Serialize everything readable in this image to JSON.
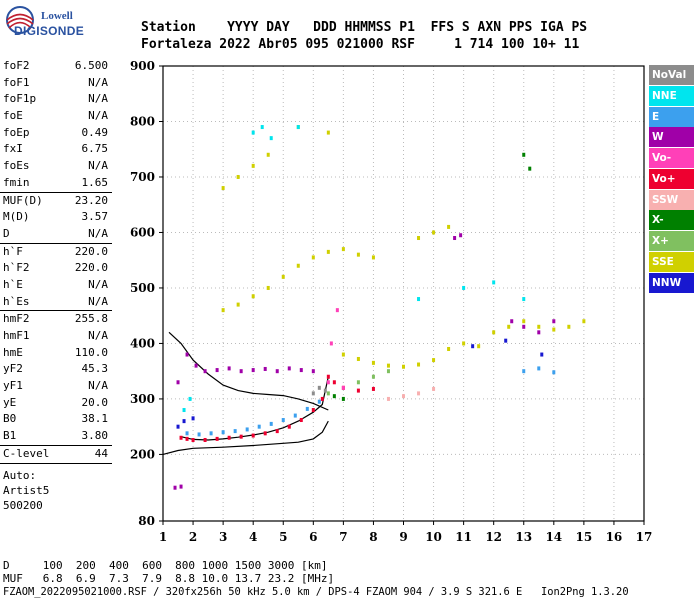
{
  "logo": {
    "top": "Lowell",
    "bottom": "DIGISONDE"
  },
  "header": {
    "line1": "Station    YYYY DAY   DDD HHMMSS P1  FFS S AXN PPS IGA PS",
    "line2": "Fortaleza 2022 Abr05 095 021000 RSF     1 714 100 10+ 11"
  },
  "params": [
    [
      [
        "foF2",
        "6.500"
      ],
      [
        "foF1",
        "N/A"
      ],
      [
        "foF1p",
        "N/A"
      ],
      [
        "foE",
        "N/A"
      ],
      [
        "foEp",
        "0.49"
      ],
      [
        "fxI",
        "6.75"
      ],
      [
        "foEs",
        "N/A"
      ],
      [
        "fmin",
        "1.65"
      ]
    ],
    [
      [
        "MUF(D)",
        "23.20"
      ],
      [
        "M(D)",
        "3.57"
      ],
      [
        "D",
        "N/A"
      ]
    ],
    [
      [
        "h`F",
        "220.0"
      ],
      [
        "h`F2",
        "220.0"
      ],
      [
        "h`E",
        "N/A"
      ],
      [
        "h`Es",
        "N/A"
      ]
    ],
    [
      [
        "hmF2",
        "255.8"
      ],
      [
        "hmF1",
        "N/A"
      ],
      [
        "hmE",
        "110.0"
      ],
      [
        "yF2",
        "45.3"
      ],
      [
        "yF1",
        "N/A"
      ],
      [
        "yE",
        "20.0"
      ],
      [
        "B0",
        "38.1"
      ],
      [
        "B1",
        "3.80"
      ]
    ],
    [
      [
        "C-level",
        "44"
      ]
    ]
  ],
  "auto": [
    "Auto:",
    "Artist5",
    "500200"
  ],
  "legend": [
    {
      "label": "NoVal",
      "color": "#8c8c8c"
    },
    {
      "label": "NNE",
      "color": "#00e5ee"
    },
    {
      "label": "E",
      "color": "#3ca0ee"
    },
    {
      "label": "W",
      "color": "#a000a8"
    },
    {
      "label": "Vo-",
      "color": "#ff40b8"
    },
    {
      "label": "Vo+",
      "color": "#ee0030"
    },
    {
      "label": "SSW",
      "color": "#f8b0b0"
    },
    {
      "label": "X-",
      "color": "#008000"
    },
    {
      "label": "X+",
      "color": "#80c060"
    },
    {
      "label": "SSE",
      "color": "#d0d000"
    },
    {
      "label": "NNW",
      "color": "#1818d0"
    }
  ],
  "footer": {
    "d_row": "D     100  200  400  600  800 1000 1500 3000 [km]",
    "muf_row": "MUF   6.8  6.9  7.3  7.9  8.8 10.0 13.7 23.2 [MHz]",
    "file_row": "FZAOM_2022095021000.RSF / 320fx256h 50 kHz 5.0 km / DPS-4 FZAOM 904 / 3.9 S 321.6 E   Ion2Png 1.3.20"
  },
  "chart_data": {
    "type": "scatter",
    "xlim": [
      1,
      17
    ],
    "ylim": [
      80,
      900
    ],
    "x_ticks": [
      1,
      2,
      3,
      4,
      5,
      6,
      7,
      8,
      9,
      10,
      11,
      12,
      13,
      14,
      15,
      16,
      17
    ],
    "y_ticks": [
      80,
      200,
      300,
      400,
      500,
      600,
      700,
      800,
      900
    ],
    "xlabel": "",
    "ylabel": "",
    "series": [
      {
        "color": "#ee0030",
        "points": [
          [
            1.6,
            230
          ],
          [
            1.8,
            228
          ],
          [
            2,
            226
          ],
          [
            2.4,
            226
          ],
          [
            2.8,
            228
          ],
          [
            3.2,
            230
          ],
          [
            3.6,
            232
          ],
          [
            4,
            234
          ],
          [
            4.4,
            238
          ],
          [
            4.8,
            242
          ],
          [
            5.2,
            250
          ],
          [
            5.6,
            262
          ],
          [
            6,
            280
          ],
          [
            6.3,
            300
          ],
          [
            6.5,
            340
          ],
          [
            6.7,
            330
          ],
          [
            7,
            320
          ],
          [
            7.5,
            315
          ],
          [
            8,
            318
          ]
        ]
      },
      {
        "color": "#3ca0ee",
        "points": [
          [
            1.8,
            238
          ],
          [
            2.2,
            236
          ],
          [
            2.6,
            238
          ],
          [
            3,
            240
          ],
          [
            3.4,
            242
          ],
          [
            3.8,
            245
          ],
          [
            4.2,
            250
          ],
          [
            4.6,
            255
          ],
          [
            5,
            262
          ],
          [
            5.4,
            270
          ],
          [
            5.8,
            282
          ],
          [
            6.2,
            295
          ],
          [
            13,
            350
          ],
          [
            13.5,
            355
          ],
          [
            14,
            348
          ]
        ]
      },
      {
        "color": "#a000a8",
        "points": [
          [
            1.5,
            330
          ],
          [
            1.8,
            380
          ],
          [
            2.1,
            360
          ],
          [
            2.4,
            350
          ],
          [
            2.8,
            352
          ],
          [
            3.2,
            355
          ],
          [
            3.6,
            350
          ],
          [
            4,
            352
          ],
          [
            4.4,
            354
          ],
          [
            4.8,
            350
          ],
          [
            5.2,
            355
          ],
          [
            5.6,
            352
          ],
          [
            6,
            350
          ],
          [
            1.4,
            140
          ],
          [
            1.6,
            142
          ],
          [
            10.7,
            590
          ],
          [
            10.9,
            595
          ],
          [
            12.6,
            440
          ],
          [
            13,
            430
          ],
          [
            13.5,
            420
          ],
          [
            14,
            440
          ]
        ]
      },
      {
        "color": "#d0d000",
        "points": [
          [
            3,
            460
          ],
          [
            3.5,
            470
          ],
          [
            4,
            485
          ],
          [
            4.5,
            500
          ],
          [
            5,
            520
          ],
          [
            5.5,
            540
          ],
          [
            6,
            555
          ],
          [
            6.5,
            565
          ],
          [
            7,
            570
          ],
          [
            7.5,
            560
          ],
          [
            8,
            555
          ],
          [
            7,
            380
          ],
          [
            7.5,
            372
          ],
          [
            8,
            365
          ],
          [
            8.5,
            360
          ],
          [
            9,
            358
          ],
          [
            9.5,
            362
          ],
          [
            10,
            370
          ],
          [
            10.5,
            390
          ],
          [
            11,
            400
          ],
          [
            11.5,
            395
          ],
          [
            12,
            420
          ],
          [
            12.5,
            430
          ],
          [
            13,
            440
          ],
          [
            13.5,
            430
          ],
          [
            14,
            425
          ],
          [
            14.5,
            430
          ],
          [
            15,
            440
          ],
          [
            3,
            680
          ],
          [
            3.5,
            700
          ],
          [
            4,
            720
          ],
          [
            4.5,
            740
          ],
          [
            5.5,
            790
          ],
          [
            6.5,
            780
          ],
          [
            9.5,
            590
          ],
          [
            10,
            600
          ],
          [
            10.5,
            610
          ]
        ]
      },
      {
        "color": "#00e5ee",
        "points": [
          [
            1.7,
            280
          ],
          [
            1.9,
            300
          ],
          [
            4,
            780
          ],
          [
            4.3,
            790
          ],
          [
            4.6,
            770
          ],
          [
            5.5,
            790
          ],
          [
            9.5,
            480
          ],
          [
            11,
            500
          ],
          [
            12,
            510
          ],
          [
            13,
            480
          ]
        ]
      },
      {
        "color": "#1818d0",
        "points": [
          [
            1.5,
            250
          ],
          [
            1.7,
            260
          ],
          [
            2,
            265
          ],
          [
            11.3,
            395
          ],
          [
            12.4,
            405
          ],
          [
            13.6,
            380
          ]
        ]
      },
      {
        "color": "#008000",
        "points": [
          [
            13,
            740
          ],
          [
            13.2,
            715
          ],
          [
            6.7,
            305
          ],
          [
            7,
            300
          ]
        ]
      },
      {
        "color": "#80c060",
        "points": [
          [
            6.5,
            310
          ],
          [
            7.5,
            330
          ],
          [
            8,
            340
          ],
          [
            8.5,
            350
          ]
        ]
      },
      {
        "color": "#f8b0b0",
        "points": [
          [
            8.5,
            300
          ],
          [
            9,
            305
          ],
          [
            9.5,
            310
          ],
          [
            10,
            318
          ]
        ]
      },
      {
        "color": "#ff40b8",
        "points": [
          [
            6.5,
            330
          ],
          [
            6.6,
            400
          ],
          [
            6.8,
            460
          ],
          [
            7,
            320
          ]
        ]
      },
      {
        "color": "#8c8c8c",
        "points": [
          [
            6,
            310
          ],
          [
            6.2,
            320
          ],
          [
            6.4,
            315
          ]
        ]
      }
    ],
    "curves": [
      {
        "color": "#000000",
        "points": [
          [
            1.2,
            420
          ],
          [
            1.6,
            400
          ],
          [
            2,
            370
          ],
          [
            2.5,
            345
          ],
          [
            3,
            325
          ],
          [
            3.5,
            315
          ],
          [
            4,
            310
          ],
          [
            4.5,
            308
          ],
          [
            5,
            306
          ],
          [
            5.5,
            300
          ],
          [
            6,
            292
          ],
          [
            6.5,
            280
          ]
        ]
      },
      {
        "color": "#000000",
        "points": [
          [
            1.6,
            232
          ],
          [
            2,
            227
          ],
          [
            2.5,
            226
          ],
          [
            3,
            228
          ],
          [
            3.5,
            231
          ],
          [
            4,
            235
          ],
          [
            4.5,
            240
          ],
          [
            5,
            248
          ],
          [
            5.5,
            260
          ],
          [
            6,
            276
          ],
          [
            6.3,
            290
          ],
          [
            6.5,
            340
          ]
        ]
      },
      {
        "color": "#000000",
        "points": [
          [
            1,
            200
          ],
          [
            1.5,
            207
          ],
          [
            2,
            211
          ],
          [
            3,
            213
          ],
          [
            4,
            216
          ],
          [
            5,
            220
          ],
          [
            5.5,
            222
          ],
          [
            6,
            228
          ],
          [
            6.3,
            240
          ],
          [
            6.5,
            260
          ]
        ]
      }
    ]
  }
}
